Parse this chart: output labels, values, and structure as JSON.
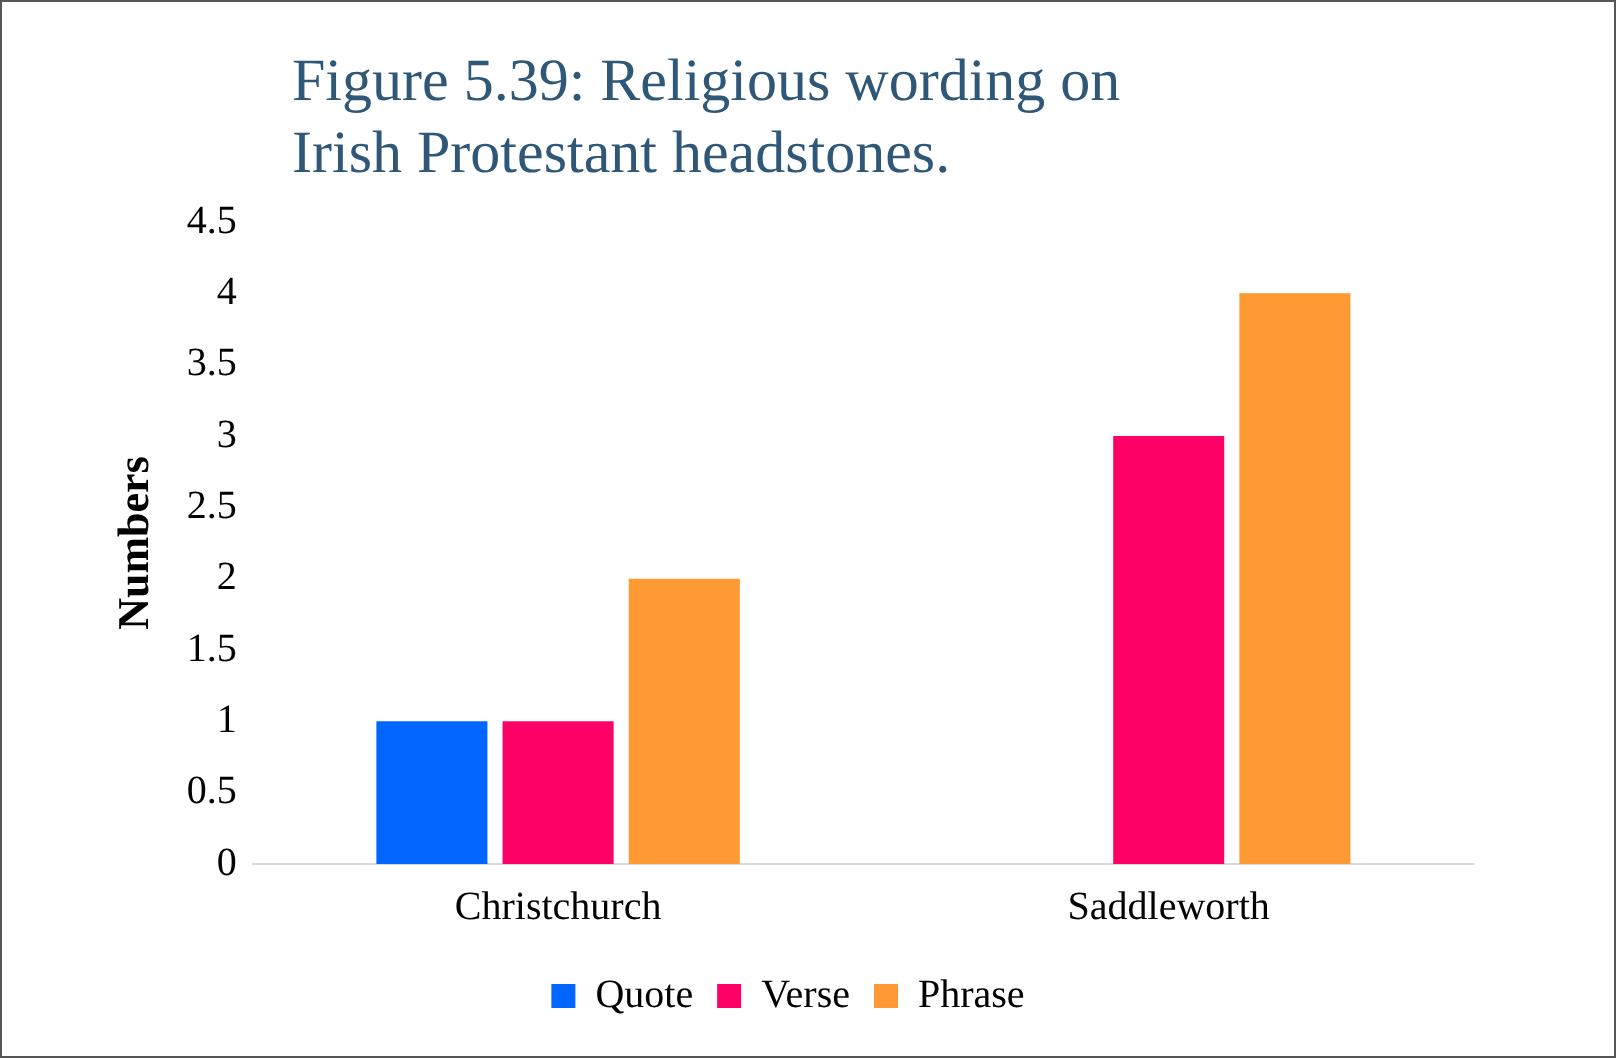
{
  "chart_data": {
    "type": "bar",
    "title": "Figure 5.39: Religious wording on Irish Protestant headstones.",
    "ylabel": "Numbers",
    "categories": [
      "Christchurch",
      "Saddleworth"
    ],
    "series": [
      {
        "name": "Quote",
        "color": "#0066ff",
        "values": [
          1,
          0
        ]
      },
      {
        "name": "Verse",
        "color": "#ff0066",
        "values": [
          1,
          3
        ]
      },
      {
        "name": "Phrase",
        "color": "#ff9933",
        "values": [
          2,
          4
        ]
      }
    ],
    "ylim": [
      0,
      4.5
    ],
    "yticks": [
      0,
      0.5,
      1,
      1.5,
      2,
      2.5,
      3,
      3.5,
      4,
      4.5
    ],
    "grid": false,
    "legend": "bottom"
  }
}
